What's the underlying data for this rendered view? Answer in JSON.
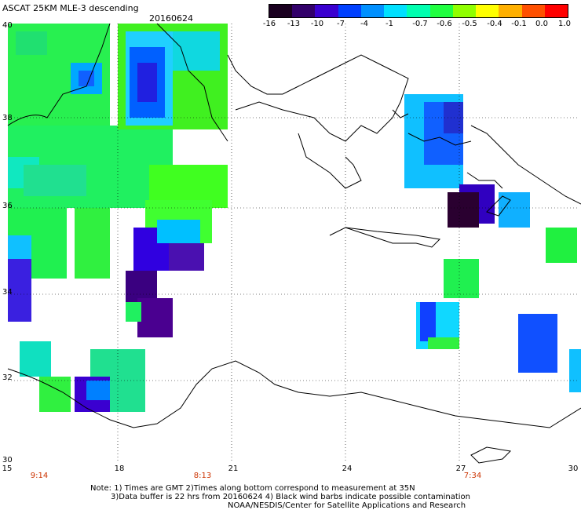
{
  "title": "ASCAT 25KM MLE-3 descending",
  "date": "20160624",
  "colorbar": {
    "labels": [
      "-16",
      "-13",
      "-10",
      "-7",
      "-4",
      "-1",
      "-0.7",
      "-0.6",
      "-0.5",
      "-0.4",
      "-0.1",
      "0.0",
      "1.0"
    ],
    "colors": [
      "#1a0020",
      "#32006a",
      "#3a00d0",
      "#0040ff",
      "#0090ff",
      "#00e0ff",
      "#00ffb0",
      "#20ff40",
      "#90ff00",
      "#ffff00",
      "#ffb000",
      "#ff5000",
      "#ff0000"
    ]
  },
  "map": {
    "lat_labels": [
      "40",
      "38",
      "36",
      "34",
      "32",
      "30"
    ],
    "lon_labels": [
      "15",
      "18",
      "21",
      "24",
      "27",
      "30"
    ],
    "time_labels": [
      {
        "text": "9:14"
      },
      {
        "text": "8:13"
      },
      {
        "text": "7:34"
      }
    ]
  },
  "notes": [
    "Note: 1) Times are GMT 2)Times along bottom correspond to measurement at 35N",
    "3)Data buffer is 22 hrs from 20160624 4) Black wind barbs indicate possible contamination",
    "NOAA/NESDIS/Center for Satellite Applications and Research"
  ]
}
